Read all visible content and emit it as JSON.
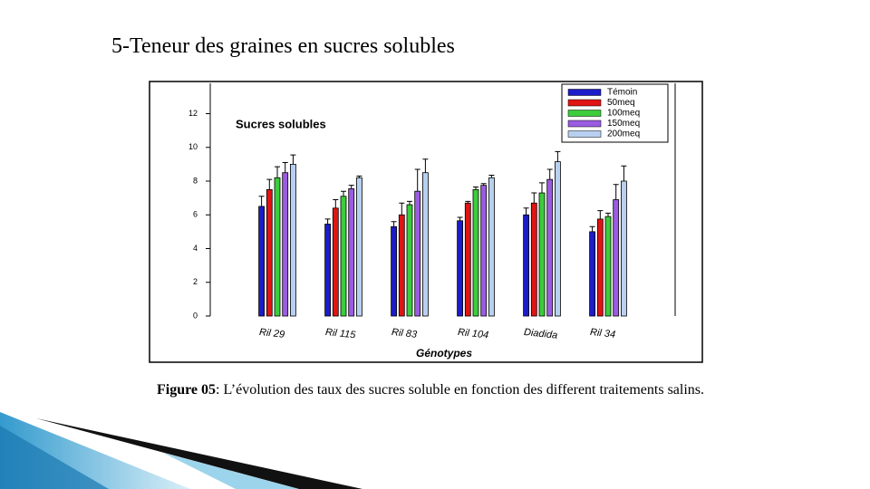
{
  "slide_title": "5-Teneur des graines en sucres solubles",
  "chart_data": {
    "type": "bar",
    "title": "Sucres solubles",
    "x_label": "Génotypes",
    "categories": [
      "Ril 29",
      "Ril 115",
      "Ril 83",
      "Ril 104",
      "Diadida",
      "Ril 34"
    ],
    "series": [
      {
        "name": "Témoin",
        "color": "#1c1cc8",
        "values": [
          6.5,
          5.45,
          5.3,
          5.65,
          6.0,
          5.0
        ],
        "errors": [
          0.6,
          0.3,
          0.3,
          0.2,
          0.4,
          0.3
        ]
      },
      {
        "name": "50meq",
        "color": "#e01414",
        "values": [
          7.5,
          6.4,
          6.0,
          6.7,
          6.7,
          5.75
        ],
        "errors": [
          0.6,
          0.5,
          0.7,
          0.1,
          0.6,
          0.5
        ]
      },
      {
        "name": "100meq",
        "color": "#3ccc3c",
        "values": [
          8.2,
          7.1,
          6.6,
          7.5,
          7.3,
          5.9
        ],
        "errors": [
          0.65,
          0.3,
          0.2,
          0.15,
          0.6,
          0.2
        ]
      },
      {
        "name": "150meq",
        "color": "#9a5ce0",
        "values": [
          8.5,
          7.55,
          7.4,
          7.75,
          8.1,
          6.9
        ],
        "errors": [
          0.6,
          0.2,
          1.3,
          0.1,
          0.6,
          0.9
        ]
      },
      {
        "name": "200meq",
        "color": "#b8d0f0",
        "values": [
          9.0,
          8.2,
          8.5,
          8.2,
          9.15,
          8.0
        ],
        "errors": [
          0.55,
          0.1,
          0.8,
          0.15,
          0.6,
          0.9
        ]
      }
    ],
    "ylim": [
      0,
      13.8
    ],
    "yticks": [
      0,
      2,
      4,
      6,
      8,
      10,
      12
    ],
    "grid": false
  },
  "caption": {
    "label": "Figure 05",
    "text": ": L’évolution des taux des sucres soluble en fonction des different traitements salins."
  }
}
